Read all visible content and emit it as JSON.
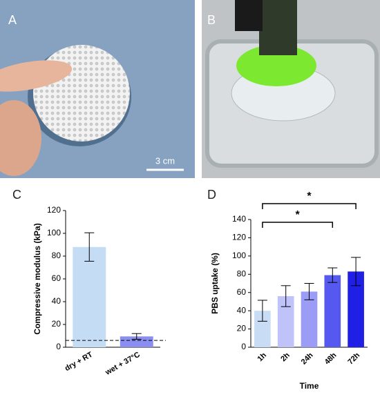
{
  "panel_labels": [
    "A",
    "B",
    "C",
    "D"
  ],
  "scale_bar": "3 cm",
  "chart_data": [
    {
      "type": "bar",
      "ylabel": "Compressive modulus (kPa)",
      "categories": [
        "dry + RT",
        "wet + 37°C"
      ],
      "values": [
        88,
        9.5
      ],
      "errors": [
        12.5,
        2.5
      ],
      "colors": [
        "#c5dcf5",
        "#8a8ef0"
      ],
      "reference_line": 6,
      "ylim": [
        0,
        120
      ],
      "yticks": [
        0,
        20,
        40,
        60,
        80,
        100,
        120
      ]
    },
    {
      "type": "bar",
      "ylabel": "PBS uptake (%)",
      "xlabel": "Time",
      "categories": [
        "1h",
        "2h",
        "24h",
        "48h",
        "72h"
      ],
      "values": [
        40,
        56,
        61,
        79,
        83
      ],
      "errors": [
        11.5,
        11.5,
        9,
        8,
        15.5
      ],
      "colors": [
        "#c9dcf5",
        "#c0c2fa",
        "#9a9cf5",
        "#5659ef",
        "#1f1fe6"
      ],
      "ylim": [
        0,
        140
      ],
      "yticks": [
        0,
        20,
        40,
        60,
        80,
        100,
        120,
        140
      ],
      "significance": [
        {
          "from": "1h",
          "to": "48h",
          "label": "*"
        },
        {
          "from": "1h",
          "to": "72h",
          "label": "*"
        }
      ]
    }
  ]
}
